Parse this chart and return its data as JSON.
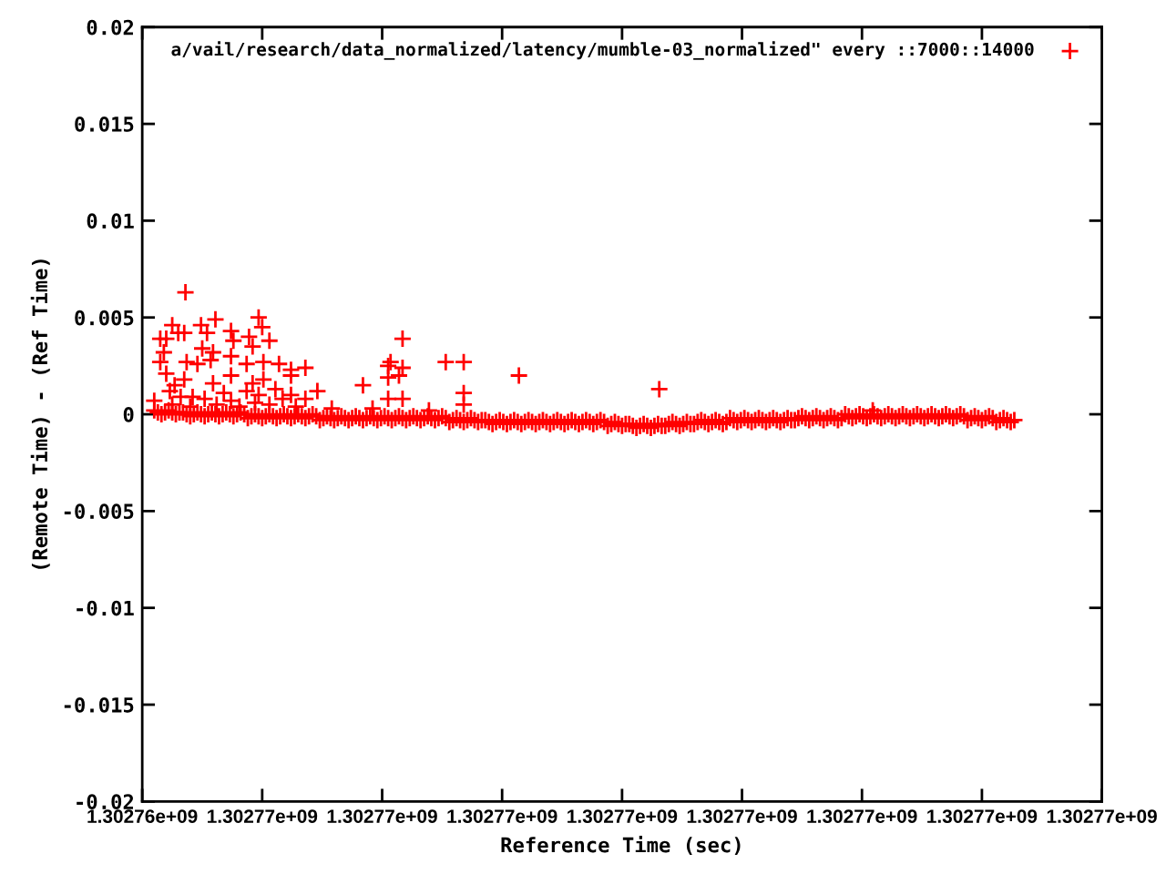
{
  "chart_data": {
    "type": "scatter",
    "xlabel": "Reference Time (sec)",
    "ylabel": "(Remote Time) - (Ref Time)",
    "xlim": [
      1302764000,
      1302772000
    ],
    "xticks": [
      {
        "value": 1302764000,
        "label": "1.30276e+09"
      },
      {
        "value": 1302765000,
        "label": "1.30277e+09"
      },
      {
        "value": 1302766000,
        "label": "1.30277e+09"
      },
      {
        "value": 1302767000,
        "label": "1.30277e+09"
      },
      {
        "value": 1302768000,
        "label": "1.30277e+09"
      },
      {
        "value": 1302769000,
        "label": "1.30277e+09"
      },
      {
        "value": 1302770000,
        "label": "1.30277e+09"
      },
      {
        "value": 1302771000,
        "label": "1.30277e+09"
      },
      {
        "value": 1302772000,
        "label": "1.30277e+09"
      }
    ],
    "ylim": [
      -0.02,
      0.02
    ],
    "yticks": [
      -0.02,
      -0.015,
      -0.01,
      -0.005,
      0,
      0.005,
      0.01,
      0.015,
      0.02
    ],
    "marker": "cross",
    "legend": "top right",
    "series": [
      {
        "name": "a/vail/research/data_normalized/latency/mumble-03_normalized\" every ::7000::14000",
        "color": "#ff0000",
        "x": [
          1302764100,
          1302764160,
          1302764220,
          1302764280,
          1302764340,
          1302764400,
          1302764460,
          1302764520,
          1302764580,
          1302764640,
          1302764700,
          1302764760,
          1302764820,
          1302764880,
          1302764940,
          1302765000,
          1302765060,
          1302765120,
          1302765180,
          1302765240,
          1302765300,
          1302765360,
          1302765420,
          1302765480,
          1302765540,
          1302765600,
          1302765660,
          1302765720,
          1302765780,
          1302765840,
          1302765900,
          1302765960,
          1302766020,
          1302766080,
          1302766140,
          1302766200,
          1302766260,
          1302766320,
          1302766380,
          1302766440,
          1302766500,
          1302766560,
          1302766620,
          1302766680,
          1302766740,
          1302766800,
          1302766860,
          1302766920,
          1302766980,
          1302767040,
          1302767100,
          1302767160,
          1302767220,
          1302767280,
          1302767340,
          1302767400,
          1302767460,
          1302767520,
          1302767580,
          1302767640,
          1302767700,
          1302767760,
          1302767820,
          1302767880,
          1302767940,
          1302768000,
          1302768060,
          1302768120,
          1302768180,
          1302768240,
          1302768300,
          1302768360,
          1302768420,
          1302768480,
          1302768540,
          1302768600,
          1302768660,
          1302768720,
          1302768780,
          1302768840,
          1302768900,
          1302768960,
          1302769020,
          1302769080,
          1302769140,
          1302769200,
          1302769260,
          1302769320,
          1302769380,
          1302769440,
          1302769500,
          1302769560,
          1302769620,
          1302769680,
          1302769740,
          1302769800,
          1302769860,
          1302769920,
          1302769980,
          1302770040,
          1302770100,
          1302770160,
          1302770220,
          1302770280,
          1302770340,
          1302770400,
          1302770460,
          1302770520,
          1302770580,
          1302770640,
          1302770700,
          1302770760,
          1302770820,
          1302770880,
          1302770940,
          1302771000,
          1302771060,
          1302771120,
          1302771180,
          1302771240,
          1302764130,
          1302764190,
          1302764250,
          1302764310,
          1302764370,
          1302764430,
          1302764490,
          1302764550,
          1302764610,
          1302764670,
          1302764730,
          1302764790,
          1302764850,
          1302764910,
          1302764970,
          1302765030,
          1302765090,
          1302765150,
          1302765210,
          1302765270,
          1302765330,
          1302765390,
          1302765450,
          1302765510,
          1302765570,
          1302765630,
          1302765690,
          1302765750,
          1302765810,
          1302765870,
          1302765930,
          1302765990,
          1302766050,
          1302766110,
          1302766170,
          1302766230,
          1302766290,
          1302766350,
          1302766410,
          1302766470,
          1302766530,
          1302766590,
          1302766650,
          1302766710,
          1302766770,
          1302766830,
          1302766890,
          1302766950,
          1302767010,
          1302767070,
          1302767130,
          1302767190,
          1302767250,
          1302767310,
          1302767370,
          1302767430,
          1302767490,
          1302767550,
          1302767610,
          1302767670,
          1302767730,
          1302767790,
          1302767850,
          1302767910,
          1302767970,
          1302768030,
          1302768090,
          1302768150,
          1302768210,
          1302768270,
          1302768330,
          1302768390,
          1302768450,
          1302768510,
          1302768570,
          1302768630,
          1302768690,
          1302768750,
          1302768810,
          1302768870,
          1302768930,
          1302768990,
          1302769050,
          1302769110,
          1302769170,
          1302769230,
          1302769290,
          1302769350,
          1302769410,
          1302769470,
          1302769530,
          1302769590,
          1302769650,
          1302769710,
          1302769770,
          1302769830,
          1302769890,
          1302769950,
          1302770010,
          1302770070,
          1302770130,
          1302770190,
          1302770250,
          1302770310,
          1302770370,
          1302770430,
          1302770490,
          1302770550,
          1302770610,
          1302770670,
          1302770730,
          1302770790,
          1302770850,
          1302770910,
          1302770970,
          1302771030,
          1302771090,
          1302771150,
          1302771210,
          1302771270,
          1302764360,
          1302764250,
          1302764490,
          1302764610,
          1302764970,
          1302765000,
          1302764150,
          1302764200,
          1302764300,
          1302764350,
          1302764540,
          1302764740,
          1302764760,
          1302764890,
          1302765060,
          1302764920,
          1302764500,
          1302764590,
          1302764180,
          1302764150,
          1302764370,
          1302764460,
          1302764570,
          1302764870,
          1302765010,
          1302765140,
          1302764740,
          1302765240,
          1302765360,
          1302764200,
          1302764350,
          1302764590,
          1302764740,
          1302764920,
          1302765010,
          1302765240,
          1302764230,
          1302764420,
          1302764520,
          1302764740,
          1302764870,
          1302764970,
          1302765110,
          1302765240,
          1302765360,
          1302765460,
          1302766170,
          1302766070,
          1302766170,
          1302766050,
          1302766050,
          1302766140,
          1302766050,
          1302766170,
          1302765840,
          1302766530,
          1302766680,
          1302766680,
          1302766680,
          1302767140,
          1302768310,
          1302770090,
          1302764250,
          1302764400,
          1302764620,
          1302764810,
          1302765060,
          1302765280,
          1302765580,
          1302765920,
          1302766390,
          1302764100,
          1302764320,
          1302764680,
          1302764940,
          1302765170,
          1302764270
        ],
        "values": [
          0.0002,
          0.0,
          0.0002,
          0.0,
          0.0001,
          -0.0001,
          0.0001,
          -0.0001,
          0.0001,
          -0.0001,
          0.0001,
          -0.0001,
          0.0001,
          -0.0002,
          0.0,
          -0.0002,
          0.0,
          -0.0002,
          0.0,
          -0.0002,
          0.0,
          -0.0002,
          0.0,
          -0.0003,
          -0.0001,
          -0.0003,
          -0.0001,
          -0.0003,
          -0.0001,
          -0.0003,
          -0.0001,
          -0.0003,
          -0.0001,
          -0.0003,
          -0.0001,
          -0.0003,
          -0.0001,
          -0.0003,
          -0.0001,
          -0.0003,
          -0.0001,
          -0.0004,
          -0.0002,
          -0.0004,
          -0.0002,
          -0.0004,
          -0.0003,
          -0.0005,
          -0.0003,
          -0.0005,
          -0.0003,
          -0.0005,
          -0.0003,
          -0.0005,
          -0.0003,
          -0.0005,
          -0.0003,
          -0.0005,
          -0.0003,
          -0.0005,
          -0.0003,
          -0.0005,
          -0.0003,
          -0.0006,
          -0.0004,
          -0.0006,
          -0.0005,
          -0.0007,
          -0.0005,
          -0.0007,
          -0.0005,
          -0.0006,
          -0.0004,
          -0.0006,
          -0.0004,
          -0.0005,
          -0.0003,
          -0.0005,
          -0.0003,
          -0.0005,
          -0.0002,
          -0.0004,
          -0.0002,
          -0.0004,
          -0.0002,
          -0.0004,
          -0.0002,
          -0.0004,
          -0.0002,
          -0.0003,
          -0.0001,
          -0.0003,
          -0.0001,
          -0.0003,
          -0.0001,
          -0.0003,
          0.0,
          -0.0002,
          0.0,
          -0.0002,
          0.0,
          -0.0002,
          0.0,
          -0.0002,
          0.0,
          -0.0002,
          0.0,
          -0.0002,
          0.0,
          -0.0002,
          0.0,
          -0.0002,
          0.0,
          -0.0003,
          -0.0001,
          -0.0003,
          -0.0001,
          -0.0004,
          -0.0002,
          -0.0004,
          0.0001,
          0.0001,
          0.0001,
          0.0001,
          0.0,
          0.0,
          0.0,
          0.0,
          0.0,
          0.0,
          0.0,
          0.0,
          0.0,
          -0.0001,
          -0.0001,
          -0.0001,
          -0.0001,
          -0.0001,
          -0.0001,
          -0.0001,
          -0.0001,
          -0.0001,
          -0.0001,
          -0.0002,
          -0.0002,
          -0.0002,
          -0.0002,
          -0.0002,
          -0.0002,
          -0.0002,
          -0.0002,
          -0.0002,
          -0.0002,
          -0.0002,
          -0.0002,
          -0.0002,
          -0.0002,
          -0.0002,
          -0.0002,
          -0.0002,
          -0.0002,
          -0.0003,
          -0.0003,
          -0.0003,
          -0.0003,
          -0.0003,
          -0.0004,
          -0.0004,
          -0.0004,
          -0.0004,
          -0.0004,
          -0.0004,
          -0.0004,
          -0.0004,
          -0.0004,
          -0.0004,
          -0.0004,
          -0.0004,
          -0.0004,
          -0.0004,
          -0.0004,
          -0.0004,
          -0.0004,
          -0.0005,
          -0.0005,
          -0.0005,
          -0.0006,
          -0.0006,
          -0.0006,
          -0.0006,
          -0.0006,
          -0.0005,
          -0.0005,
          -0.0005,
          -0.0005,
          -0.0004,
          -0.0004,
          -0.0004,
          -0.0004,
          -0.0004,
          -0.0003,
          -0.0003,
          -0.0003,
          -0.0003,
          -0.0003,
          -0.0003,
          -0.0003,
          -0.0003,
          -0.0003,
          -0.0002,
          -0.0002,
          -0.0002,
          -0.0002,
          -0.0002,
          -0.0002,
          -0.0002,
          -0.0001,
          -0.0001,
          -0.0001,
          -0.0001,
          -0.0001,
          -0.0001,
          -0.0001,
          -0.0001,
          -0.0001,
          -0.0001,
          -0.0001,
          -0.0001,
          -0.0001,
          -0.0001,
          -0.0001,
          -0.0001,
          -0.0001,
          -0.0002,
          -0.0002,
          -0.0002,
          -0.0002,
          -0.0003,
          -0.0003,
          -0.0003,
          0.0063,
          0.0046,
          0.0046,
          0.0049,
          0.005,
          0.0045,
          0.0039,
          0.0039,
          0.0042,
          0.0042,
          0.0042,
          0.0043,
          0.0038,
          0.004,
          0.0038,
          0.0035,
          0.0034,
          0.0032,
          0.0032,
          0.0027,
          0.0027,
          0.0026,
          0.0028,
          0.0026,
          0.0027,
          0.0026,
          0.003,
          0.0023,
          0.0024,
          0.0021,
          0.0018,
          0.0016,
          0.002,
          0.0016,
          0.0018,
          0.002,
          0.0012,
          0.0009,
          0.0008,
          0.0007,
          0.0012,
          0.001,
          0.0013,
          0.001,
          0.0008,
          0.0012,
          0.0039,
          0.0027,
          0.0024,
          0.0025,
          0.0019,
          0.002,
          0.0008,
          0.0008,
          0.0015,
          0.0027,
          0.0027,
          0.0011,
          0.0005,
          0.002,
          0.0013,
          0.0002,
          0.0005,
          0.0004,
          0.0005,
          0.0004,
          0.0005,
          0.0004,
          0.0003,
          0.0003,
          0.0002,
          0.0007,
          0.0009,
          0.0011,
          0.0006,
          0.0008,
          0.0015
        ]
      }
    ]
  }
}
